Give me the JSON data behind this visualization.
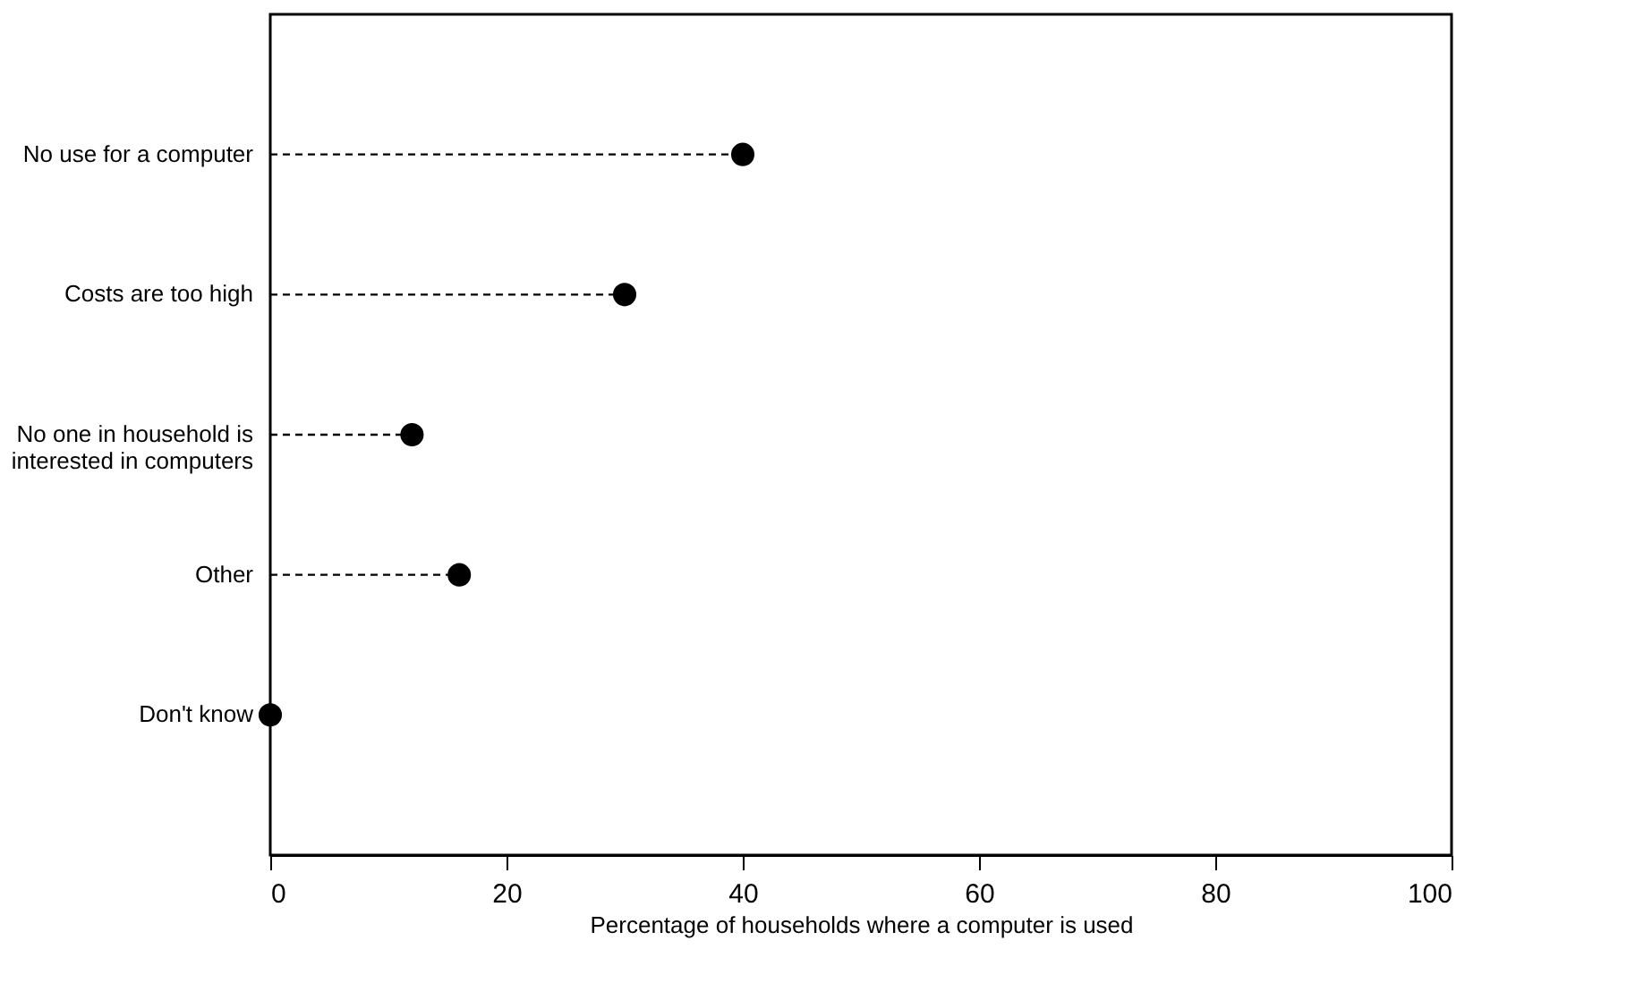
{
  "chart_data": {
    "type": "lollipop",
    "orientation": "horizontal",
    "xlabel": "Percentage of households where a computer is used",
    "categories": [
      "No use for a computer",
      "Costs are too high",
      "No one in household is interested in computers",
      "Other",
      "Don't know"
    ],
    "values": [
      40,
      30,
      12,
      16,
      0
    ],
    "color": "#000000",
    "marker": "circle",
    "line_style": "dashed",
    "xlim": [
      0,
      100
    ],
    "xticks": [
      0,
      20,
      40,
      60,
      80,
      100
    ],
    "grid": false
  }
}
